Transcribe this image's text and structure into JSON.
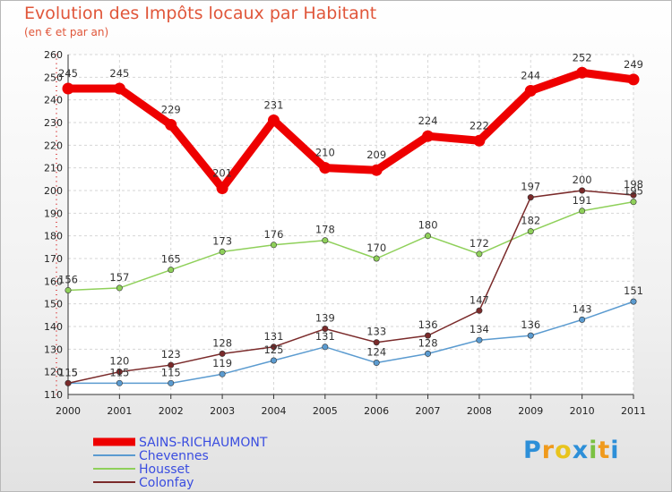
{
  "title": "Evolution des Impôts locaux par Habitant",
  "subtitle": "(en € et par an)",
  "logo": {
    "text": "Proxiti",
    "letters": [
      {
        "ch": "P",
        "color": "#2d8fd8"
      },
      {
        "ch": "r",
        "color": "#f09a1c"
      },
      {
        "ch": "o",
        "color": "#e8c41d"
      },
      {
        "ch": "x",
        "color": "#2d8fd8"
      },
      {
        "ch": "i",
        "color": "#7ac142"
      },
      {
        "ch": "t",
        "color": "#f09a1c"
      },
      {
        "ch": "i",
        "color": "#2d8fd8"
      }
    ]
  },
  "chart_data": {
    "type": "line",
    "title": "Evolution des Impôts locaux par Habitant",
    "subtitle": "(en € et par an)",
    "x": [
      2000,
      2001,
      2002,
      2003,
      2004,
      2005,
      2006,
      2007,
      2008,
      2009,
      2010,
      2011
    ],
    "ylim": [
      110,
      260
    ],
    "yticks": [
      110,
      120,
      130,
      140,
      150,
      160,
      170,
      180,
      190,
      200,
      210,
      220,
      230,
      240,
      250,
      260
    ],
    "grid": true,
    "legend": "bottom-left",
    "series": [
      {
        "name": "SAINS-RICHAUMONT",
        "color": "#ee0000",
        "values": [
          245,
          245,
          229,
          201,
          231,
          210,
          209,
          224,
          222,
          244,
          252,
          249
        ]
      },
      {
        "name": "Chevennes",
        "color": "#5b9bd0",
        "values": [
          115,
          115,
          115,
          119,
          125,
          131,
          124,
          128,
          134,
          136,
          143,
          151
        ]
      },
      {
        "name": "Housset",
        "color": "#8fd05a",
        "values": [
          156,
          157,
          165,
          173,
          176,
          178,
          170,
          180,
          172,
          182,
          191,
          195
        ]
      },
      {
        "name": "Colonfay",
        "color": "#7a2a2a",
        "values": [
          115,
          120,
          123,
          128,
          131,
          139,
          133,
          136,
          147,
          197,
          200,
          198
        ]
      }
    ]
  }
}
